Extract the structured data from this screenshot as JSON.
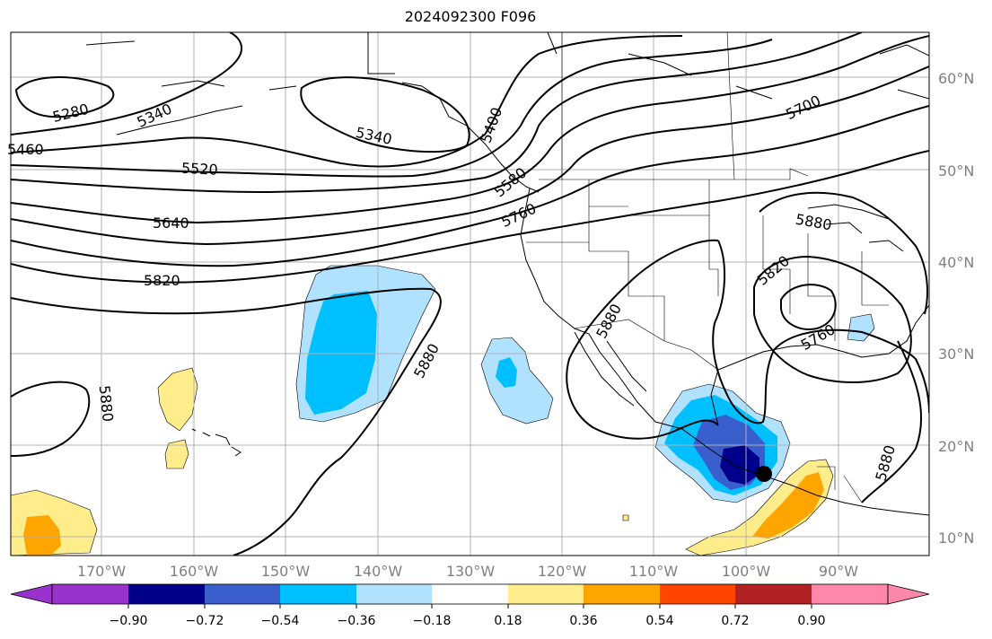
{
  "title": "2024092300 F096",
  "map": {
    "lat_labels": [
      "60°N",
      "50°N",
      "40°N",
      "30°N",
      "20°N",
      "10°N"
    ],
    "lon_labels": [
      "170°W",
      "160°W",
      "150°W",
      "140°W",
      "130°W",
      "120°W",
      "110°W",
      "100°W",
      "90°W"
    ],
    "contour_labels": [
      "5280",
      "5340",
      "5460",
      "5340",
      "5400",
      "5520",
      "5640",
      "5820",
      "5580",
      "5760",
      "5700",
      "5880",
      "5820",
      "5880",
      "5760",
      "5880",
      "5880",
      "5880"
    ],
    "colors": {
      "land_outline": "#000000",
      "grid": "#b0b0b0",
      "contour": "#000000",
      "storm_marker": "#000000"
    }
  },
  "colorbar": {
    "ticks": [
      "−0.90",
      "−0.72",
      "−0.54",
      "−0.36",
      "−0.18",
      "0.18",
      "0.36",
      "0.54",
      "0.72",
      "0.90"
    ],
    "colors": [
      "#9932cc",
      "#00008b",
      "#3a5fcd",
      "#00bfff",
      "#b0e2ff",
      "#ffffff",
      "#ffec8b",
      "#ffa500",
      "#ff4500",
      "#b22222",
      "#ff88aa"
    ]
  }
}
